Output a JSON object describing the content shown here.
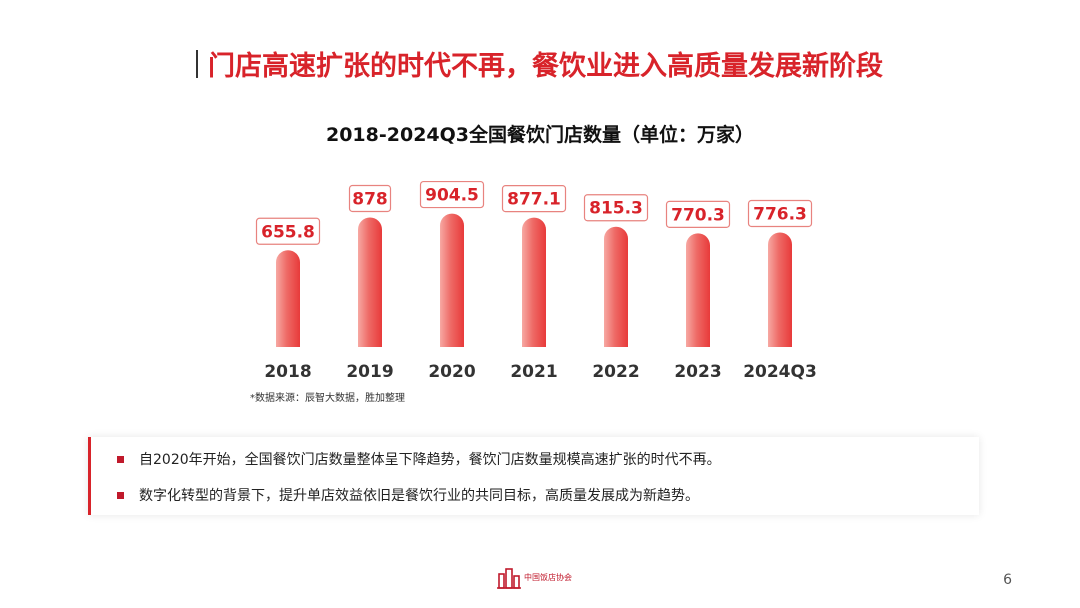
{
  "slide": {
    "title": "门店高速扩张的时代不再，餐饮业进入高质量发展新阶段",
    "page_number": "6",
    "accent_color": "#d8232a",
    "bar_color_light": "#f7a9a3",
    "bar_color_dark": "#ea3f3f"
  },
  "chart_data": {
    "type": "bar",
    "title": "2018-2024Q3全国餐饮门店数量（单位：万家）",
    "categories": [
      "2018",
      "2019",
      "2020",
      "2021",
      "2022",
      "2023",
      "2024Q3"
    ],
    "values": [
      655.8,
      878,
      904.5,
      877.1,
      815.3,
      770.3,
      776.3
    ],
    "value_labels": [
      "655.8",
      "878",
      "904.5",
      "877.1",
      "815.3",
      "770.3",
      "776.3"
    ],
    "xlabel": "",
    "ylabel": "",
    "ylim": [
      0,
      950
    ],
    "grid": false,
    "legend": "none"
  },
  "source_note": "*数据来源：辰智大数据，胜加整理",
  "bullets": [
    "自2020年开始，全国餐饮门店数量整体呈下降趋势，餐饮门店数量规模高速扩张的时代不再。",
    "数字化转型的背景下，提升单店效益依旧是餐饮行业的共同目标，高质量发展成为新趋势。"
  ],
  "footer": {
    "logo_text": "中国饭店协会",
    "logo_icon": "building-logo-icon"
  }
}
